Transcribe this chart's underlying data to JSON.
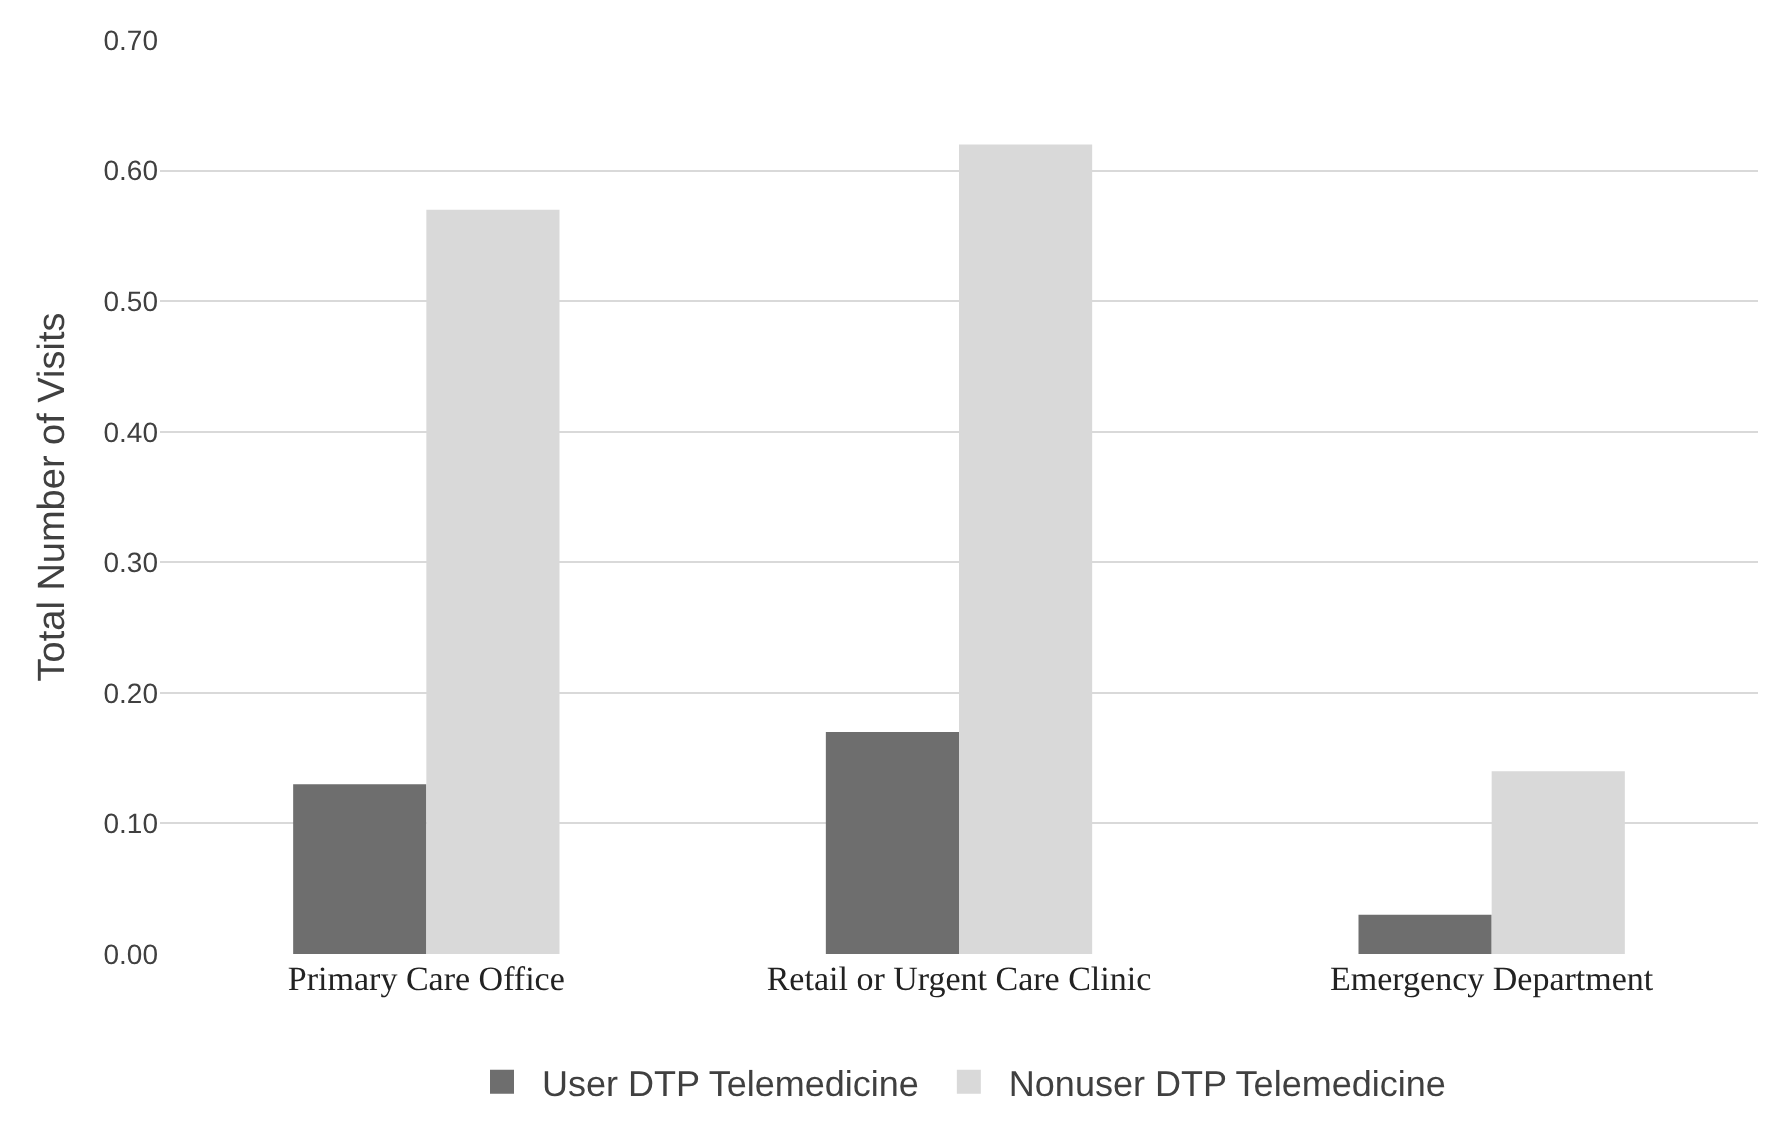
{
  "chart_data": {
    "type": "bar",
    "ylabel": "Total Number of Visits",
    "categories": [
      "Primary Care Office",
      "Retail or Urgent Care Clinic",
      "Emergency Department"
    ],
    "series": [
      {
        "name": "User DTP Telemedicine",
        "color": "#6e6e6e",
        "values": [
          0.13,
          0.17,
          0.03
        ]
      },
      {
        "name": "Nonuser DTP Telemedicine",
        "color": "#d9d9d9",
        "values": [
          0.57,
          0.62,
          0.14
        ]
      }
    ],
    "ylim": [
      0,
      0.7
    ],
    "yticks": [
      {
        "value": 0,
        "label": "0.00"
      },
      {
        "value": 0.1,
        "label": "0.10"
      },
      {
        "value": 0.2,
        "label": "0.20"
      },
      {
        "value": 0.3,
        "label": "0.30"
      },
      {
        "value": 0.4,
        "label": "0.40"
      },
      {
        "value": 0.5,
        "label": "0.50"
      },
      {
        "value": 0.6,
        "label": "0.60"
      },
      {
        "value": 0.7,
        "label": "0.70"
      }
    ],
    "grid": "y",
    "legend": "bottom"
  }
}
